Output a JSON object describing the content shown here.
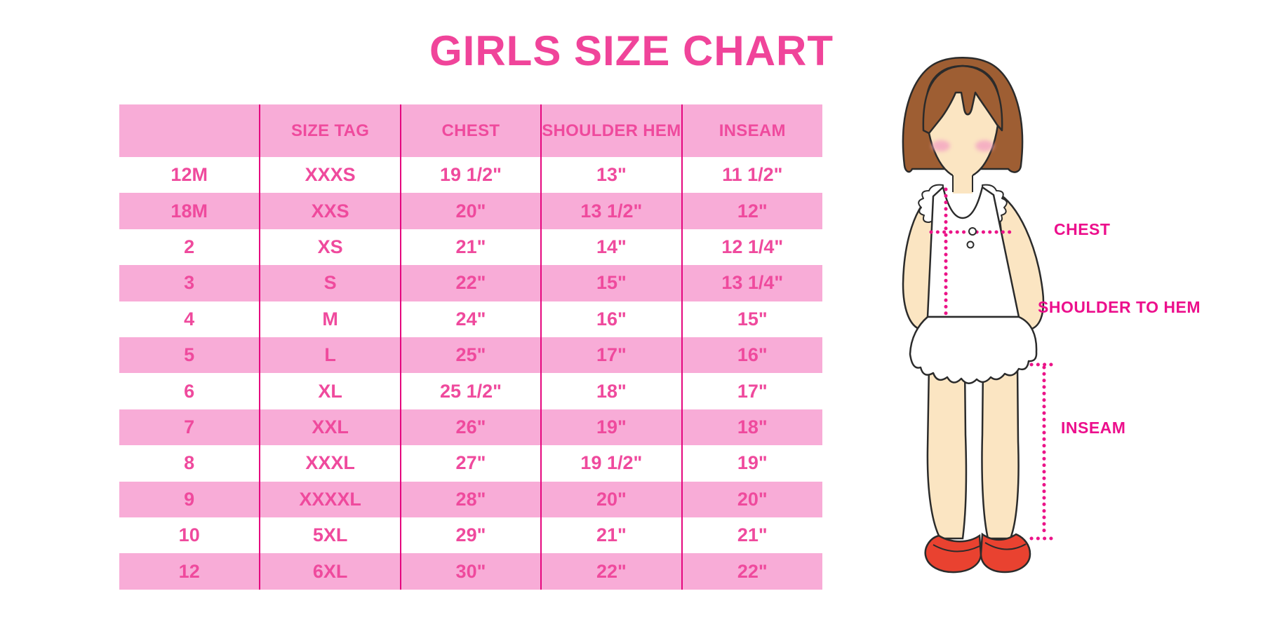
{
  "title": "GIRLS SIZE CHART",
  "chart_data": {
    "type": "table",
    "title": "GIRLS SIZE CHART",
    "columns": [
      "",
      "SIZE TAG",
      "CHEST",
      "SHOULDER HEM",
      "INSEAM"
    ],
    "rows": [
      [
        "12M",
        "XXXS",
        "19 1/2\"",
        "13\"",
        "11 1/2\""
      ],
      [
        "18M",
        "XXS",
        "20\"",
        "13 1/2\"",
        "12\""
      ],
      [
        "2",
        "XS",
        "21\"",
        "14\"",
        "12 1/4\""
      ],
      [
        "3",
        "S",
        "22\"",
        "15\"",
        "13 1/4\""
      ],
      [
        "4",
        "M",
        "24\"",
        "16\"",
        "15\""
      ],
      [
        "5",
        "L",
        "25\"",
        "17\"",
        "16\""
      ],
      [
        "6",
        "XL",
        "25 1/2\"",
        "18\"",
        "17\""
      ],
      [
        "7",
        "XXL",
        "26\"",
        "19\"",
        "18\""
      ],
      [
        "8",
        "XXXL",
        "27\"",
        "19 1/2\"",
        "19\""
      ],
      [
        "9",
        "XXXXL",
        "28\"",
        "20\"",
        "20\""
      ],
      [
        "10",
        "5XL",
        "29\"",
        "21\"",
        "21\""
      ],
      [
        "12",
        "6XL",
        "30\"",
        "22\"",
        "22\""
      ]
    ],
    "layout_hints": {
      "header_background": "pink",
      "row_striping": "white/pink alternating starting white",
      "grid": "vertical magenta dividers only"
    }
  },
  "figure": {
    "chest_label": "CHEST",
    "shoulder_hem_label": "SHOULDER TO HEM",
    "inseam_label": "INSEAM"
  },
  "colors": {
    "row_pink": "#F8ACD7",
    "table_text_pink": "#EF4A9D",
    "divider_pink": "#E5077E",
    "title_pink": "#F0449A",
    "label_magenta": "#EC0F8C",
    "dotted_line_pink": "#EB1488",
    "hair_brown": "#9E5E33",
    "skin": "#FBE5C2",
    "blush": "#F4A7C3",
    "shoe_red": "#E94230",
    "outline": "#2B2B2B"
  }
}
